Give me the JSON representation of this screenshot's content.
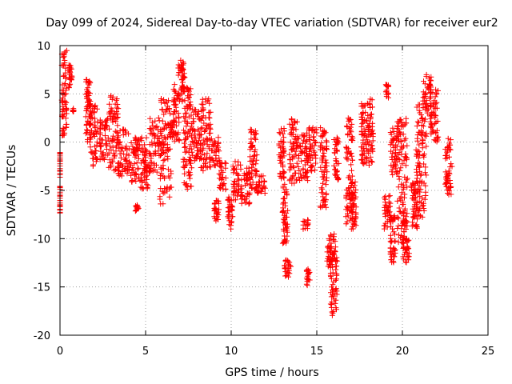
{
  "chart_data": {
    "type": "scatter",
    "title": "Day 099 of 2024, Sidereal Day-to-day VTEC variation (SDTVAR) for receiver eur2",
    "xlabel": "GPS time / hours",
    "ylabel": "SDTVAR / TECUs",
    "xlim": [
      0,
      25
    ],
    "ylim": [
      -20,
      10
    ],
    "xticks": [
      0,
      5,
      10,
      15,
      20,
      25
    ],
    "yticks": [
      -20,
      -15,
      -10,
      -5,
      0,
      5,
      10
    ],
    "grid": true,
    "marker": "+",
    "marker_color": "#ff0000",
    "segments": [
      [
        0.0,
        0.0,
        -7.5,
        -1.0
      ],
      [
        0.1,
        0.4,
        0.5,
        9.5
      ],
      [
        0.5,
        0.7,
        5.5,
        8.0
      ],
      [
        0.7,
        0.8,
        3.0,
        3.5
      ],
      [
        1.5,
        1.8,
        0.0,
        6.5
      ],
      [
        1.7,
        2.2,
        -2.5,
        4.0
      ],
      [
        2.3,
        2.8,
        -2.0,
        2.5
      ],
      [
        2.8,
        3.4,
        -3.0,
        4.8
      ],
      [
        3.4,
        4.0,
        -3.5,
        1.5
      ],
      [
        4.0,
        4.6,
        -4.5,
        0.5
      ],
      [
        4.4,
        4.6,
        -7.5,
        -6.5
      ],
      [
        4.6,
        5.2,
        -5.0,
        0.5
      ],
      [
        5.2,
        5.8,
        -3.5,
        2.5
      ],
      [
        5.8,
        6.5,
        -6.5,
        4.5
      ],
      [
        6.4,
        6.6,
        0.5,
        2.0
      ],
      [
        6.6,
        7.0,
        0.0,
        6.0
      ],
      [
        6.9,
        7.3,
        4.0,
        8.5
      ],
      [
        7.2,
        7.7,
        -5.0,
        6.0
      ],
      [
        7.7,
        8.2,
        -2.0,
        3.5
      ],
      [
        8.2,
        8.8,
        -3.0,
        4.5
      ],
      [
        8.7,
        9.3,
        -2.5,
        0.5
      ],
      [
        9.0,
        9.3,
        -8.5,
        -6.0
      ],
      [
        9.3,
        9.7,
        -5.0,
        -2.0
      ],
      [
        9.8,
        10.1,
        -9.0,
        -5.5
      ],
      [
        10.1,
        10.6,
        -6.0,
        -2.0
      ],
      [
        10.6,
        11.1,
        -6.5,
        -2.5
      ],
      [
        11.1,
        11.5,
        -5.0,
        1.5
      ],
      [
        11.5,
        12.0,
        -5.5,
        -3.5
      ],
      [
        12.8,
        13.1,
        -4.0,
        1.5
      ],
      [
        13.0,
        13.3,
        -10.5,
        -4.0
      ],
      [
        13.1,
        13.5,
        -14.0,
        -12.0
      ],
      [
        13.4,
        13.9,
        -4.5,
        2.5
      ],
      [
        13.9,
        14.5,
        -4.0,
        1.0
      ],
      [
        14.2,
        14.5,
        -9.0,
        -8.0
      ],
      [
        14.4,
        14.6,
        -15.0,
        -13.0
      ],
      [
        14.5,
        15.0,
        -3.0,
        1.5
      ],
      [
        15.2,
        15.6,
        -7.0,
        1.5
      ],
      [
        15.6,
        15.9,
        -13.0,
        -10.0
      ],
      [
        15.8,
        16.2,
        -18.0,
        -9.5
      ],
      [
        16.0,
        16.3,
        -4.0,
        0.5
      ],
      [
        16.7,
        17.1,
        -8.5,
        2.5
      ],
      [
        17.0,
        17.3,
        -9.0,
        -4.0
      ],
      [
        17.6,
        17.9,
        -2.5,
        4.0
      ],
      [
        17.9,
        18.3,
        -2.5,
        4.5
      ],
      [
        19.0,
        19.2,
        4.5,
        6.0
      ],
      [
        18.9,
        19.3,
        -9.0,
        -5.5
      ],
      [
        19.3,
        19.7,
        -3.5,
        1.5
      ],
      [
        19.3,
        19.6,
        -12.5,
        -7.5
      ],
      [
        19.7,
        20.3,
        -10.5,
        2.5
      ],
      [
        20.0,
        20.4,
        -12.5,
        -8.0
      ],
      [
        20.5,
        20.9,
        -9.0,
        -4.0
      ],
      [
        20.8,
        21.4,
        -8.0,
        4.0
      ],
      [
        21.2,
        21.7,
        3.0,
        7.5
      ],
      [
        21.6,
        22.1,
        0.0,
        5.5
      ],
      [
        22.5,
        22.9,
        -5.5,
        0.5
      ]
    ]
  }
}
